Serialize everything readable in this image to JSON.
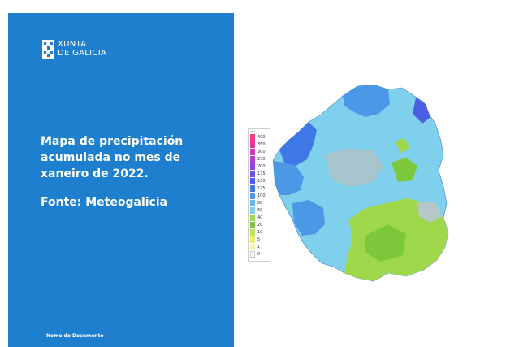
{
  "brand": {
    "line1": "XUNTA",
    "line2": "DE GALICIA"
  },
  "title": "Mapa de precipitación acumulada no mes de xaneiro de 2022.",
  "source": "Fonte: Meteogalicia",
  "footer": "Nome do Documento",
  "legend": {
    "unit": "l/m²",
    "items": [
      {
        "label": "400",
        "color": "#f23a8c"
      },
      {
        "label": "350",
        "color": "#e2379f"
      },
      {
        "label": "300",
        "color": "#d23ab8"
      },
      {
        "label": "250",
        "color": "#b53fce"
      },
      {
        "label": "200",
        "color": "#9245d8"
      },
      {
        "label": "175",
        "color": "#6d4fe0"
      },
      {
        "label": "150",
        "color": "#4c5fe2"
      },
      {
        "label": "125",
        "color": "#3d78e4"
      },
      {
        "label": "100",
        "color": "#4a98e6"
      },
      {
        "label": "80",
        "color": "#5fb8e9"
      },
      {
        "label": "60",
        "color": "#7fd0ec"
      },
      {
        "label": "40",
        "color": "#9ed84a"
      },
      {
        "label": "20",
        "color": "#7dc83a"
      },
      {
        "label": "10",
        "color": "#bfe060"
      },
      {
        "label": "5",
        "color": "#e8f070"
      },
      {
        "label": "1",
        "color": "#f4f4b0"
      },
      {
        "label": "0",
        "color": "#ffffff"
      }
    ]
  }
}
